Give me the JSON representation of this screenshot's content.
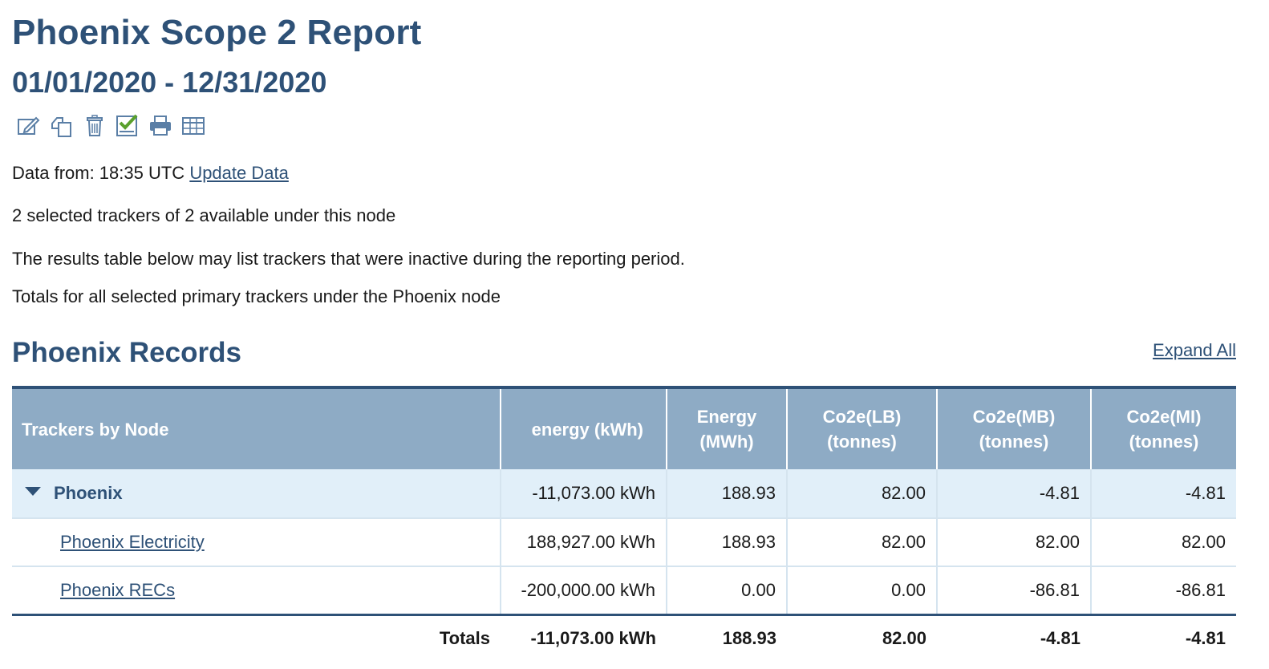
{
  "report": {
    "title": "Phoenix Scope 2 Report",
    "date_range": "01/01/2020 - 12/31/2020"
  },
  "toolbar": {
    "icons": [
      "edit-icon",
      "copy-icon",
      "trash-icon",
      "checklist-icon",
      "print-icon",
      "table-icon"
    ]
  },
  "info": {
    "data_from_label": "Data from: 18:35 UTC",
    "update_link": "Update Data",
    "trackers_selected": "2 selected trackers of 2 available under this node",
    "inactive_note": "The results table below may list trackers that were inactive during the reporting period.",
    "totals_note": "Totals for all selected primary trackers under the Phoenix node"
  },
  "records": {
    "title": "Phoenix Records",
    "expand_all": "Expand All",
    "columns": {
      "trackers": "Trackers by Node",
      "energy_kwh": "energy (kWh)",
      "energy_mwh_1": "Energy",
      "energy_mwh_2": "(MWh)",
      "lb_1": "Co2e(LB)",
      "lb_2": "(tonnes)",
      "mb_1": "Co2e(MB)",
      "mb_2": "(tonnes)",
      "mi_1": "Co2e(MI)",
      "mi_2": "(tonnes)"
    },
    "node": {
      "name": "Phoenix",
      "energy_kwh": "-11,073.00 kWh",
      "energy_mwh": "188.93",
      "co2e_lb": "82.00",
      "co2e_mb": "-4.81",
      "co2e_mi": "-4.81"
    },
    "rows": [
      {
        "name": "Phoenix Electricity",
        "energy_kwh": "188,927.00 kWh",
        "energy_mwh": "188.93",
        "co2e_lb": "82.00",
        "co2e_mb": "82.00",
        "co2e_mi": "82.00"
      },
      {
        "name": "Phoenix RECs",
        "energy_kwh": "-200,000.00 kWh",
        "energy_mwh": "0.00",
        "co2e_lb": "0.00",
        "co2e_mb": "-86.81",
        "co2e_mi": "-86.81"
      }
    ],
    "totals": {
      "label": "Totals",
      "energy_kwh": "-11,073.00 kWh",
      "energy_mwh": "188.93",
      "co2e_lb": "82.00",
      "co2e_mb": "-4.81",
      "co2e_mi": "-4.81"
    }
  },
  "colors": {
    "heading": "#2e5177",
    "table_header_bg": "#8eabc5",
    "node_row_bg": "#e1eff9",
    "check_green": "#5aa02c"
  }
}
